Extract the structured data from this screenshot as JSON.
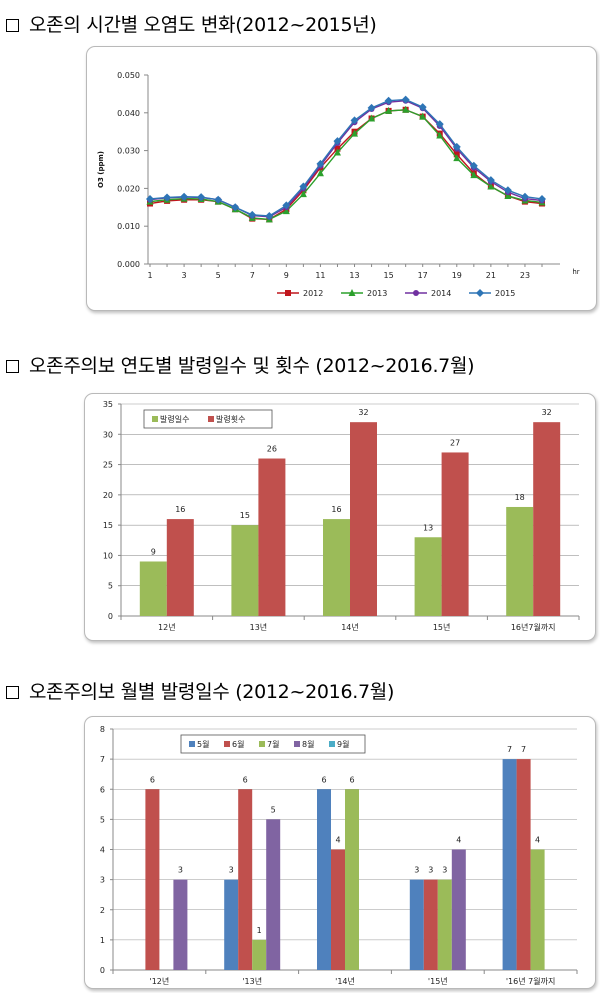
{
  "sections": [
    {
      "title": "오존의 시간별 오염도 변화(2012~2015년)"
    },
    {
      "title": "오존주의보 연도별 발령일수 및 횟수 (2012~2016.7월)"
    },
    {
      "title": "오존주의보 월별 발령일수 (2012~2016.7월)"
    }
  ],
  "chart_data": [
    {
      "type": "line",
      "title": "",
      "xlabel": "hr",
      "ylabel": "O3 (ppm)",
      "x": [
        1,
        2,
        3,
        4,
        5,
        6,
        7,
        8,
        9,
        10,
        11,
        12,
        13,
        14,
        15,
        16,
        17,
        18,
        19,
        20,
        21,
        22,
        23,
        24
      ],
      "xticks": [
        "1",
        "3",
        "5",
        "7",
        "9",
        "11",
        "13",
        "15",
        "17",
        "19",
        "21",
        "23"
      ],
      "yticks": [
        "0.000",
        "0.010",
        "0.020",
        "0.030",
        "0.040",
        "0.050"
      ],
      "ylim": [
        0,
        0.05
      ],
      "legend_position": "bottom",
      "series": [
        {
          "name": "2012",
          "color": "#c0161d",
          "marker": "square",
          "values": [
            0.016,
            0.0167,
            0.017,
            0.017,
            0.0165,
            0.0145,
            0.012,
            0.0118,
            0.0145,
            0.0195,
            0.0255,
            0.0305,
            0.035,
            0.0385,
            0.0405,
            0.0408,
            0.039,
            0.0345,
            0.029,
            0.024,
            0.0205,
            0.018,
            0.0165,
            0.016
          ]
        },
        {
          "name": "2013",
          "color": "#2ca02c",
          "marker": "triangle",
          "values": [
            0.0165,
            0.017,
            0.0173,
            0.0172,
            0.0165,
            0.0145,
            0.0122,
            0.0118,
            0.014,
            0.0185,
            0.024,
            0.0295,
            0.0345,
            0.0385,
            0.0405,
            0.0408,
            0.039,
            0.034,
            0.028,
            0.0235,
            0.0205,
            0.018,
            0.0168,
            0.0163
          ]
        },
        {
          "name": "2014",
          "color": "#7030a0",
          "marker": "circle",
          "values": [
            0.017,
            0.0175,
            0.0177,
            0.0176,
            0.017,
            0.015,
            0.0128,
            0.0125,
            0.015,
            0.02,
            0.026,
            0.032,
            0.0375,
            0.041,
            0.0428,
            0.0432,
            0.0412,
            0.0365,
            0.0305,
            0.0255,
            0.0218,
            0.019,
            0.0173,
            0.0168
          ]
        },
        {
          "name": "2015",
          "color": "#2e75b6",
          "marker": "diamond",
          "values": [
            0.0172,
            0.0176,
            0.0178,
            0.0177,
            0.017,
            0.015,
            0.013,
            0.0127,
            0.0155,
            0.0205,
            0.0265,
            0.0325,
            0.038,
            0.0413,
            0.0432,
            0.0435,
            0.0415,
            0.037,
            0.031,
            0.026,
            0.0222,
            0.0195,
            0.0178,
            0.0172
          ]
        }
      ]
    },
    {
      "type": "bar",
      "title": "",
      "categories": [
        "12년",
        "13년",
        "14년",
        "15년",
        "16년7월까지"
      ],
      "ylim": [
        0,
        35
      ],
      "yticks": [
        "0",
        "5",
        "10",
        "15",
        "20",
        "25",
        "30",
        "35"
      ],
      "legend_position": "top-left",
      "series": [
        {
          "name": "발령일수",
          "color": "#9bbb59",
          "values": [
            9,
            15,
            16,
            13,
            18
          ]
        },
        {
          "name": "발령횟수",
          "color": "#c0504d",
          "values": [
            16,
            26,
            32,
            27,
            32
          ]
        }
      ]
    },
    {
      "type": "bar",
      "title": "",
      "categories": [
        "'12년",
        "'13년",
        "'14년",
        "'15년",
        "'16년 7월까지"
      ],
      "ylim": [
        0,
        8
      ],
      "yticks": [
        "0",
        "1",
        "2",
        "3",
        "4",
        "5",
        "6",
        "7",
        "8"
      ],
      "legend_position": "top",
      "series": [
        {
          "name": "5월",
          "color": "#4f81bd",
          "values": [
            null,
            3,
            6,
            3,
            7
          ]
        },
        {
          "name": "6월",
          "color": "#c0504d",
          "values": [
            6,
            6,
            4,
            3,
            7
          ]
        },
        {
          "name": "7월",
          "color": "#9bbb59",
          "values": [
            null,
            1,
            6,
            3,
            4
          ]
        },
        {
          "name": "8월",
          "color": "#8064a2",
          "values": [
            3,
            5,
            null,
            4,
            null
          ]
        },
        {
          "name": "9월",
          "color": "#4bacc6",
          "values": [
            null,
            null,
            null,
            null,
            null
          ]
        }
      ]
    }
  ]
}
